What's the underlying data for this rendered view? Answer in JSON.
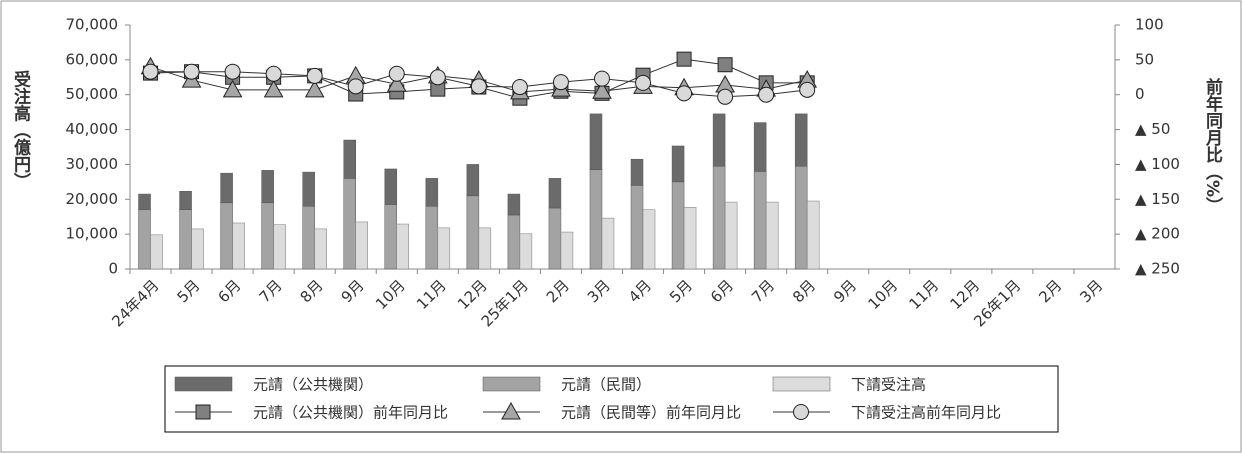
{
  "chart_data": {
    "type": "bar",
    "categories": [
      "24年4月",
      "5月",
      "6月",
      "7月",
      "8月",
      "9月",
      "10月",
      "11月",
      "12月",
      "25年1月",
      "2月",
      "3月",
      "4月",
      "5月",
      "6月",
      "7月",
      "8月",
      "9月",
      "10月",
      "11月",
      "12月",
      "26年1月",
      "2月",
      "3月"
    ],
    "y_label": "受注高（億円）",
    "y2_label": "前年同月比（%）",
    "ylim": [
      0,
      70000
    ],
    "yticks": [
      0,
      {
        "value": 10000,
        "label": "10,000"
      },
      {
        "value": 20000,
        "label": "20,000"
      },
      {
        "value": 30000,
        "label": "30,000"
      },
      {
        "value": 40000,
        "label": "40,000"
      },
      {
        "value": 50000,
        "label": "50,000"
      },
      {
        "value": 60000,
        "label": "60,000"
      },
      {
        "value": 70000,
        "label": "70,000"
      }
    ],
    "y2lim": [
      -250,
      100
    ],
    "y2ticks": [
      100,
      50,
      0,
      {
        "value": -50,
        "label": "▲ 50"
      },
      {
        "value": -100,
        "label": "▲ 100"
      },
      {
        "value": -150,
        "label": "▲ 150"
      },
      {
        "value": -200,
        "label": "▲ 200"
      },
      {
        "value": -250,
        "label": "▲ 250"
      }
    ],
    "series": [
      {
        "name": "元請（公共機関）",
        "type": "bar",
        "stacked": true,
        "color": "#6b6b6b",
        "values": [
          4500,
          5300,
          8500,
          9300,
          9800,
          11000,
          10200,
          8000,
          9000,
          6000,
          8500,
          16000,
          7500,
          10300,
          15000,
          14000,
          15000,
          null,
          null,
          null,
          null,
          null,
          null,
          null
        ]
      },
      {
        "name": "元請（民間）",
        "type": "bar",
        "stacked": true,
        "color": "#a3a3a3",
        "values": [
          17000,
          17000,
          19000,
          19000,
          18000,
          26000,
          18500,
          18000,
          21000,
          15500,
          17500,
          28500,
          24000,
          25000,
          29500,
          28000,
          29500,
          null,
          null,
          null,
          null,
          null,
          null,
          null
        ]
      },
      {
        "name": "下請受注高",
        "type": "bar",
        "stacked": false,
        "color": "#dcdcdc",
        "values": [
          9800,
          11500,
          13200,
          12700,
          11500,
          13500,
          12900,
          11800,
          11800,
          10100,
          10600,
          14600,
          17000,
          17700,
          19200,
          19200,
          19500,
          null,
          null,
          null,
          null,
          null,
          null,
          null
        ]
      },
      {
        "name": "元請（公共機関）前年同月比",
        "type": "line",
        "axis": "y2",
        "marker": "square",
        "color": "#808080",
        "values": [
          31,
          33,
          25,
          25,
          27,
          1,
          4,
          8,
          11,
          -5,
          5,
          2,
          28,
          51,
          43,
          17,
          17,
          null,
          null,
          null,
          null,
          null,
          null,
          null
        ]
      },
      {
        "name": "元請（民間等）前年同月比",
        "type": "line",
        "axis": "y2",
        "marker": "triangle",
        "color": "#a6a6a6",
        "values": [
          40,
          21,
          7,
          7,
          7,
          27,
          15,
          27,
          21,
          4,
          8,
          5,
          12,
          10,
          14,
          8,
          21,
          null,
          null,
          null,
          null,
          null,
          null,
          null
        ]
      },
      {
        "name": "下請受注高前年同月比",
        "type": "line",
        "axis": "y2",
        "marker": "circle",
        "color": "#d9d9d9",
        "values": [
          33,
          33,
          33,
          30,
          27,
          12,
          30,
          25,
          12,
          11,
          18,
          23,
          17,
          2,
          -3,
          0,
          7,
          null,
          null,
          null,
          null,
          null,
          null,
          null
        ]
      }
    ]
  }
}
